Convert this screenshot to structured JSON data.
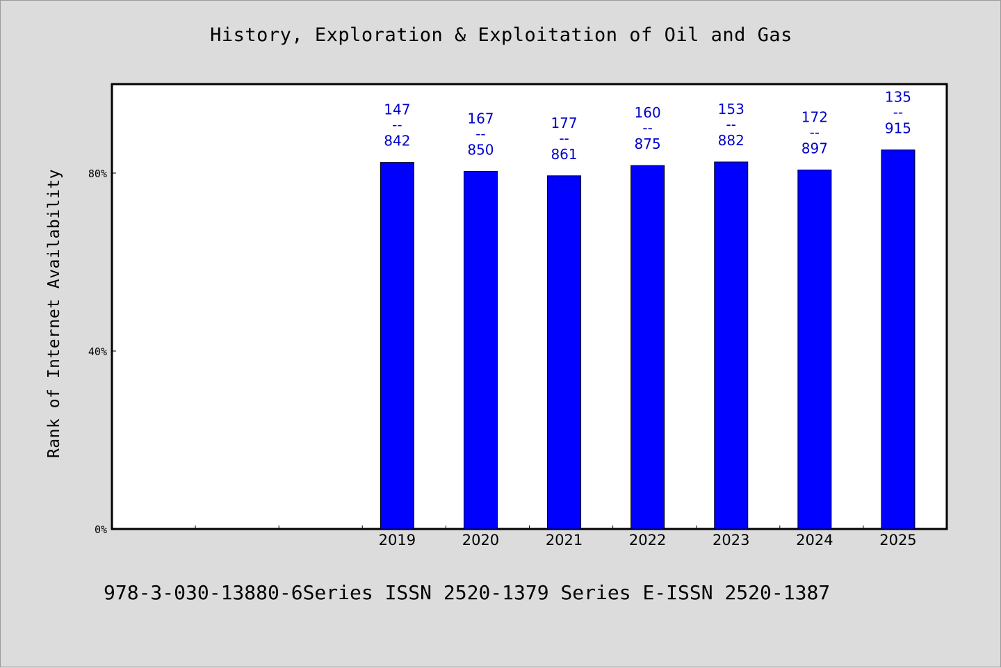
{
  "chart_data": {
    "type": "bar",
    "title": "History, Exploration & Exploitation of Oil and Gas",
    "ylabel": "Rank of Internet Availability",
    "xlabel": "",
    "categories": [
      "2019",
      "2020",
      "2021",
      "2022",
      "2023",
      "2024",
      "2025"
    ],
    "values": [
      82.4,
      80.4,
      79.4,
      81.7,
      82.5,
      80.7,
      85.2
    ],
    "data_labels": [
      {
        "top": "147",
        "sep": "--",
        "bottom": "842"
      },
      {
        "top": "167",
        "sep": "--",
        "bottom": "850"
      },
      {
        "top": "177",
        "sep": "--",
        "bottom": "861"
      },
      {
        "top": "160",
        "sep": "--",
        "bottom": "875"
      },
      {
        "top": "153",
        "sep": "--",
        "bottom": "882"
      },
      {
        "top": "172",
        "sep": "--",
        "bottom": "897"
      },
      {
        "top": "135",
        "sep": "--",
        "bottom": "915"
      }
    ],
    "yticks": [
      0,
      40,
      80
    ],
    "ytick_labels": [
      "0%",
      "40%",
      "80%"
    ],
    "ylim": [
      0,
      100
    ],
    "x_slots": 10,
    "first_category_slot": 3,
    "grid": false,
    "legend": "none",
    "bar_color": "#0000ff",
    "label_color": "#0000cc"
  },
  "footer": {
    "text": "978-3-030-13880-6Series ISSN 2520-1379 Series E-ISSN 2520-1387"
  }
}
